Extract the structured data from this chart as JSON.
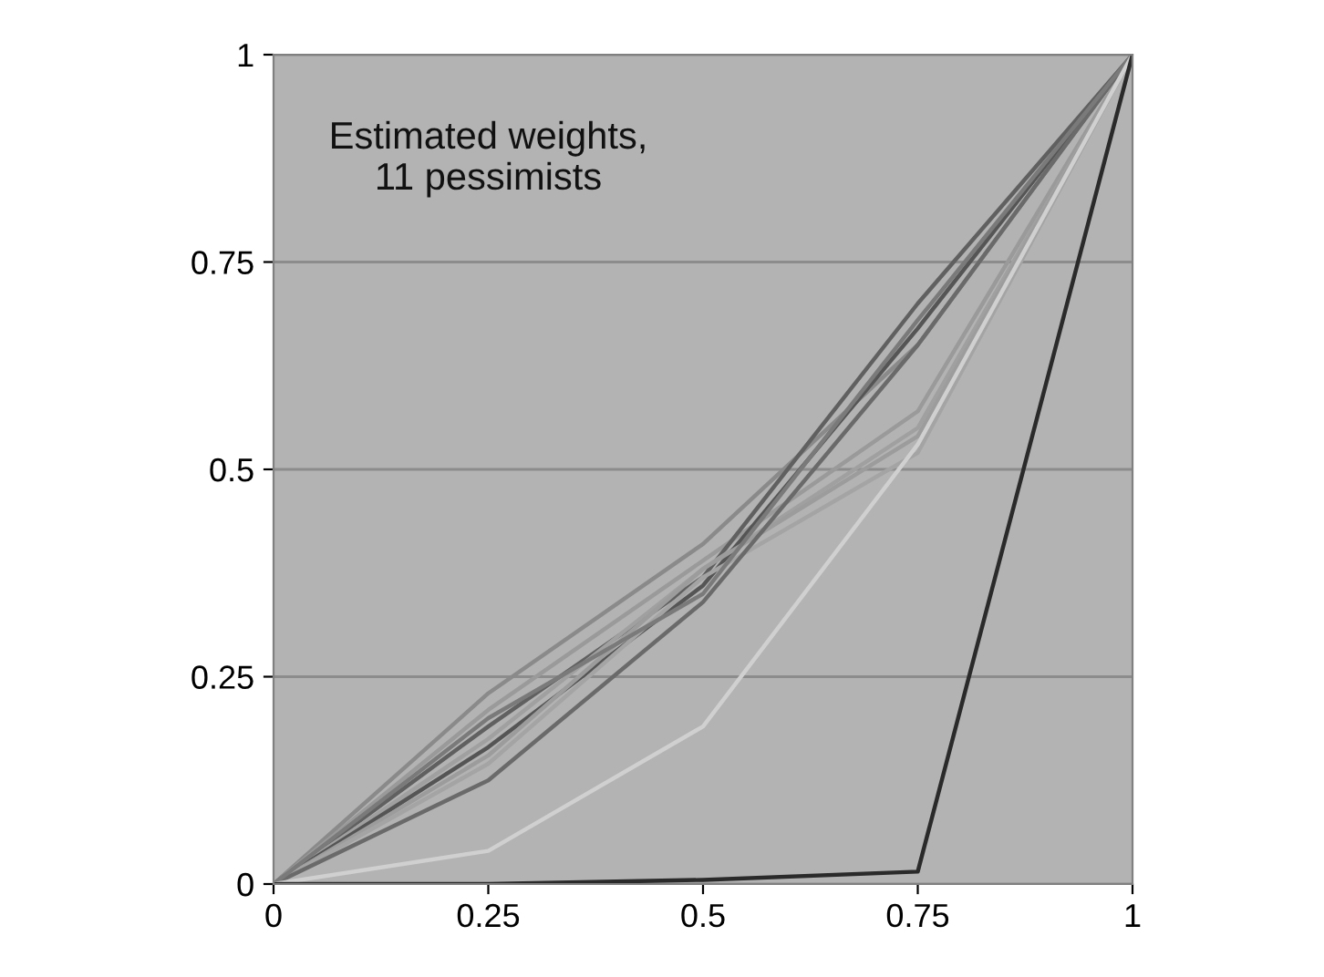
{
  "chart_data": {
    "type": "line",
    "title": "Estimated weights,\n11 pessimists",
    "x": [
      0,
      0.25,
      0.5,
      0.75,
      1
    ],
    "series": [
      {
        "color": "#8a8a8a",
        "values": [
          0,
          0.23,
          0.41,
          0.65,
          1
        ]
      },
      {
        "color": "#9a9a9a",
        "values": [
          0,
          0.21,
          0.39,
          0.57,
          1
        ]
      },
      {
        "color": "#606060",
        "values": [
          0,
          0.19,
          0.37,
          0.7,
          1
        ]
      },
      {
        "color": "#a0a0a0",
        "values": [
          0,
          0.175,
          0.38,
          0.55,
          1
        ]
      },
      {
        "color": "#555555",
        "values": [
          0,
          0.165,
          0.36,
          0.67,
          1
        ]
      },
      {
        "color": "#9c9c9c",
        "values": [
          0,
          0.155,
          0.38,
          0.54,
          1
        ]
      },
      {
        "color": "#a4a4a4",
        "values": [
          0,
          0.145,
          0.37,
          0.52,
          1
        ]
      },
      {
        "color": "#6a6a6a",
        "values": [
          0,
          0.125,
          0.34,
          0.65,
          1
        ]
      },
      {
        "color": "#7a7a7a",
        "values": [
          0,
          0.2,
          0.35,
          0.68,
          1
        ]
      },
      {
        "color": "#d0d0d0",
        "values": [
          0,
          0.04,
          0.19,
          0.53,
          1
        ]
      },
      {
        "color": "#2a2a2a",
        "values": [
          0,
          0,
          0.005,
          0.015,
          1
        ]
      }
    ],
    "xlim": [
      0,
      1
    ],
    "ylim": [
      0,
      1
    ],
    "xticks": [
      0,
      0.25,
      0.5,
      0.75,
      1
    ],
    "yticks": [
      0,
      0.25,
      0.5,
      0.75,
      1
    ],
    "grid": "y",
    "marker": "none",
    "line_style": "solid"
  }
}
